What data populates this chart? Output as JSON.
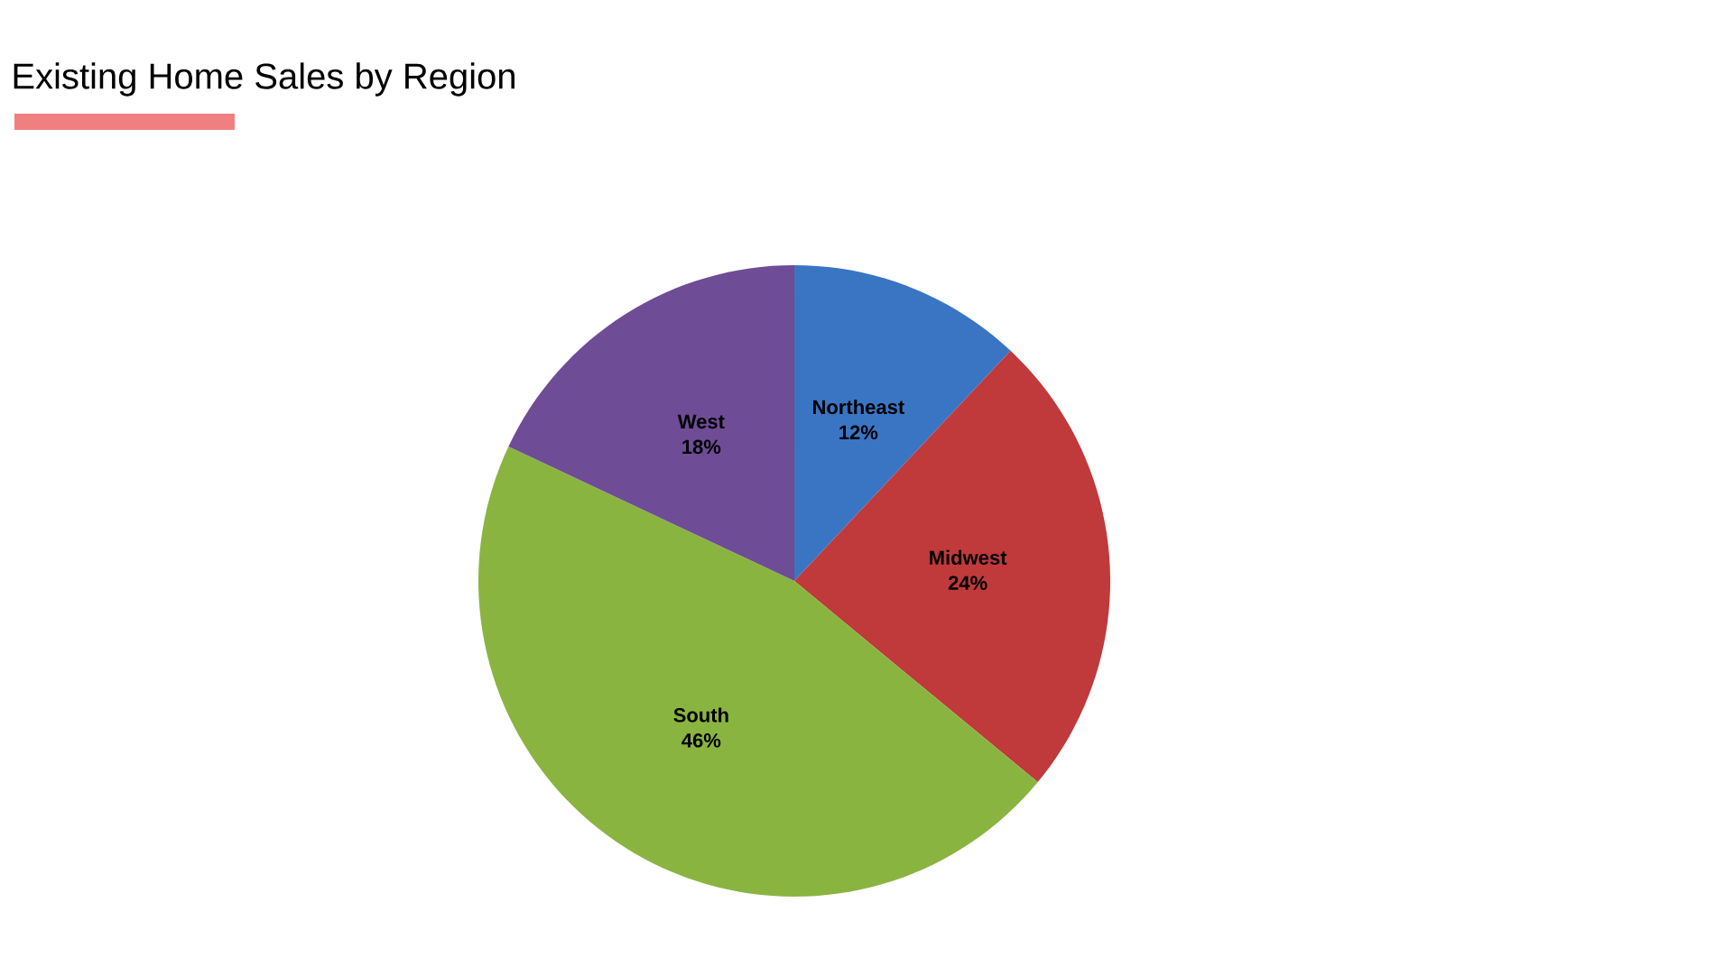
{
  "chart_data": {
    "type": "pie",
    "title": "Existing Home Sales by Region",
    "categories": [
      "Northeast",
      "Midwest",
      "South",
      "West"
    ],
    "values": [
      12,
      24,
      46,
      18
    ],
    "value_labels": [
      "12%",
      "24%",
      "46%",
      "18%"
    ],
    "colors": [
      "#3a75c4",
      "#c0393b",
      "#8ab440",
      "#6e4c96"
    ]
  }
}
